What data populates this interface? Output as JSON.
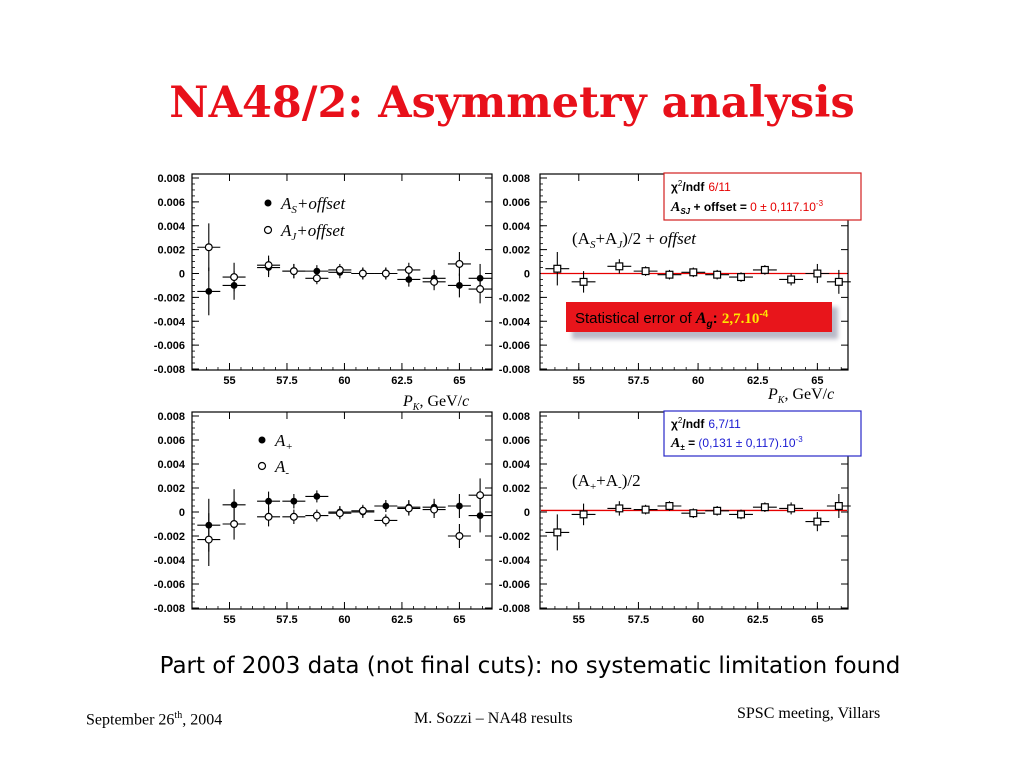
{
  "slide": {
    "title": "NA48/2: Asymmetry analysis",
    "caption": "Part of 2003 data (not final cuts): no systematic limitation found",
    "footer_date_prefix": "September 26",
    "footer_date_sup": "th",
    "footer_date_suffix": ", 2004",
    "footer_author": "M. Sozzi – NA48 results",
    "footer_meeting": "SPSC meeting, Villars"
  },
  "labels": {
    "top_left_xlabel_prefix": "P",
    "top_left_xlabel_sub": "K",
    "top_left_xlabel_suffix": ", GeV/",
    "top_left_xlabel_c": "c",
    "top_right_xlabel_prefix": "P",
    "top_right_xlabel_sub": "K",
    "top_right_xlabel_suffix": ", GeV/",
    "top_right_xlabel_c": "c",
    "legend_as": "A",
    "legend_as_sub": "S",
    "legend_as_suffix": "+offset",
    "legend_aj": "A",
    "legend_aj_sub": "J",
    "legend_aj_suffix": "+offset",
    "legend_aplus": "A",
    "legend_aplus_sub": "+",
    "legend_aminus": "A",
    "legend_aminus_sub": "-",
    "tr_formula": "(A",
    "tr_formula_s": "S",
    "tr_formula_mid": "+A",
    "tr_formula_j": "J",
    "tr_formula_end": ")/2 + ",
    "tr_formula_offset": "offset",
    "br_formula": "(A",
    "br_formula_p": "+",
    "br_formula_mid": "+A",
    "br_formula_m": "-",
    "br_formula_end": ")/2",
    "tr_box_chi": "χ",
    "tr_box_chi_sup": "2",
    "tr_box_ndf": "/ndf",
    "tr_box_ndf_value": "6/11",
    "tr_box_a": "A",
    "tr_box_a_sub": "SJ",
    "tr_box_line2": " + offset = ",
    "tr_box_line2_value": "0 ± 0,117.10",
    "tr_box_line2_exp": "-3",
    "stat_error_text": "Statistical error of ",
    "stat_error_a": "A",
    "stat_error_a_sub": "g",
    "stat_error_colon": ": ",
    "stat_error_value": "2,7.10",
    "stat_error_exp": "-4",
    "br_box_chi": "χ",
    "br_box_chi_sup": "2",
    "br_box_ndf": "/ndf",
    "br_box_ndf_value": "6,7/11",
    "br_box_a": "A",
    "br_box_a_sub": "±",
    "br_box_line2": " = ",
    "br_box_line2_value": "(0,131 ± 0,117).10",
    "br_box_line2_exp": "-3"
  },
  "colors": {
    "title": "#e8101a",
    "fit_line": "#e60000",
    "red_box_border": "#d21e1e",
    "blue_box_border": "#2828c8",
    "stat_banner": "#e8151b",
    "stat_banner_shadow": "#b9b9c8"
  },
  "chart_data": [
    {
      "type": "scatter",
      "panel": "top-left",
      "xlim": [
        53.5,
        66.2
      ],
      "ylim": [
        -0.008,
        0.008
      ],
      "xticks": [
        "55",
        "57.5",
        "60",
        "62.5",
        "65"
      ],
      "yticks": [
        "0.008",
        "0.006",
        "0.004",
        "0.002",
        "0",
        "-0.002",
        "-0.004",
        "-0.006",
        "-0.008"
      ],
      "series": [
        {
          "name": "AS+offset",
          "marker": "filled",
          "x": [
            54.1,
            55.2,
            56.7,
            57.8,
            58.8,
            59.8,
            60.8,
            61.8,
            62.8,
            63.9,
            65.0,
            65.9
          ],
          "y": [
            -0.0015,
            -0.001,
            0.0005,
            0.0002,
            0.0002,
            0.0001,
            0.0,
            0.0,
            -0.0005,
            -0.0004,
            -0.001,
            -0.0004
          ],
          "xerr": 0.5,
          "yerr": [
            0.002,
            0.0012,
            0.0008,
            0.0006,
            0.0005,
            0.0005,
            0.0005,
            0.0005,
            0.0006,
            0.0007,
            0.001,
            0.0012
          ]
        },
        {
          "name": "AJ+offset",
          "marker": "open",
          "x": [
            54.1,
            55.2,
            56.7,
            57.8,
            58.8,
            59.8,
            60.8,
            61.8,
            62.8,
            63.9,
            65.0,
            65.9
          ],
          "y": [
            0.0022,
            -0.0003,
            0.0007,
            0.0002,
            -0.0004,
            0.0003,
            0.0,
            0.0,
            0.0003,
            -0.0007,
            0.0008,
            -0.0013
          ],
          "xerr": 0.5,
          "yerr": [
            0.002,
            0.0012,
            0.0008,
            0.0006,
            0.0005,
            0.0005,
            0.0005,
            0.0005,
            0.0006,
            0.0007,
            0.001,
            0.0012
          ]
        }
      ]
    },
    {
      "type": "scatter",
      "panel": "top-right",
      "xlim": [
        53.5,
        66.2
      ],
      "ylim": [
        -0.008,
        0.008
      ],
      "xticks": [
        "55",
        "57.5",
        "60",
        "62.5",
        "65"
      ],
      "yticks": [
        "0.008",
        "0.006",
        "0.004",
        "0.002",
        "0",
        "-0.002",
        "-0.004",
        "-0.006",
        "-0.008"
      ],
      "fit": 0.0,
      "series": [
        {
          "name": "(AS+AJ)/2 + offset",
          "marker": "open-square",
          "x": [
            54.1,
            55.2,
            56.7,
            57.8,
            58.8,
            59.8,
            60.8,
            61.8,
            62.8,
            63.9,
            65.0,
            65.9
          ],
          "y": [
            0.0004,
            -0.0007,
            0.0006,
            0.0002,
            -0.0001,
            0.0001,
            -0.0001,
            -0.0003,
            0.0003,
            -0.0005,
            0.0,
            -0.0007
          ],
          "xerr": 0.5,
          "yerr": [
            0.0014,
            0.0009,
            0.0006,
            0.0004,
            0.0004,
            0.0004,
            0.0004,
            0.0004,
            0.0004,
            0.0005,
            0.0008,
            0.001
          ]
        }
      ]
    },
    {
      "type": "scatter",
      "panel": "bottom-left",
      "xlim": [
        53.5,
        66.2
      ],
      "ylim": [
        -0.008,
        0.008
      ],
      "xticks": [
        "55",
        "57.5",
        "60",
        "62.5",
        "65"
      ],
      "yticks": [
        "0.008",
        "0.006",
        "0.004",
        "0.002",
        "0",
        "-0.002",
        "-0.004",
        "-0.006",
        "-0.008"
      ],
      "series": [
        {
          "name": "A+",
          "marker": "filled",
          "x": [
            54.1,
            55.2,
            56.7,
            57.8,
            58.8,
            59.8,
            60.8,
            61.8,
            62.8,
            63.9,
            65.0,
            65.9
          ],
          "y": [
            -0.0011,
            0.0006,
            0.0009,
            0.0009,
            0.0013,
            0.0,
            0.0,
            0.0005,
            0.0004,
            0.0004,
            0.0005,
            -0.0003
          ],
          "xerr": 0.5,
          "yerr": [
            0.0022,
            0.0013,
            0.0008,
            0.0006,
            0.0005,
            0.0005,
            0.0005,
            0.0005,
            0.0006,
            0.0007,
            0.001,
            0.0014
          ]
        },
        {
          "name": "A-",
          "marker": "open",
          "x": [
            54.1,
            55.2,
            56.7,
            57.8,
            58.8,
            59.8,
            60.8,
            61.8,
            62.8,
            63.9,
            65.0,
            65.9
          ],
          "y": [
            -0.0023,
            -0.001,
            -0.0004,
            -0.0004,
            -0.0003,
            -0.0001,
            0.0001,
            -0.0007,
            0.0003,
            0.0002,
            -0.002,
            0.0014
          ],
          "xerr": 0.5,
          "yerr": [
            0.0022,
            0.0013,
            0.0008,
            0.0006,
            0.0005,
            0.0005,
            0.0005,
            0.0005,
            0.0006,
            0.0007,
            0.001,
            0.0014
          ]
        }
      ]
    },
    {
      "type": "scatter",
      "panel": "bottom-right",
      "xlim": [
        53.5,
        66.2
      ],
      "ylim": [
        -0.008,
        0.008
      ],
      "xticks": [
        "55",
        "57.5",
        "60",
        "62.5",
        "65"
      ],
      "yticks": [
        "0.008",
        "0.006",
        "0.004",
        "0.002",
        "0",
        "-0.002",
        "-0.004",
        "-0.006",
        "-0.008"
      ],
      "fit": 0.00013,
      "series": [
        {
          "name": "(A++A-)/2",
          "marker": "open-square",
          "x": [
            54.1,
            55.2,
            56.7,
            57.8,
            58.8,
            59.8,
            60.8,
            61.8,
            62.8,
            63.9,
            65.0,
            65.9
          ],
          "y": [
            -0.0017,
            -0.0002,
            0.0003,
            0.0002,
            0.0005,
            -0.0001,
            0.0001,
            -0.0002,
            0.0004,
            0.0003,
            -0.0008,
            0.0005
          ],
          "xerr": 0.5,
          "yerr": [
            0.0015,
            0.0009,
            0.0006,
            0.0004,
            0.0004,
            0.0004,
            0.0004,
            0.0004,
            0.0004,
            0.0005,
            0.0008,
            0.001
          ]
        }
      ]
    }
  ]
}
